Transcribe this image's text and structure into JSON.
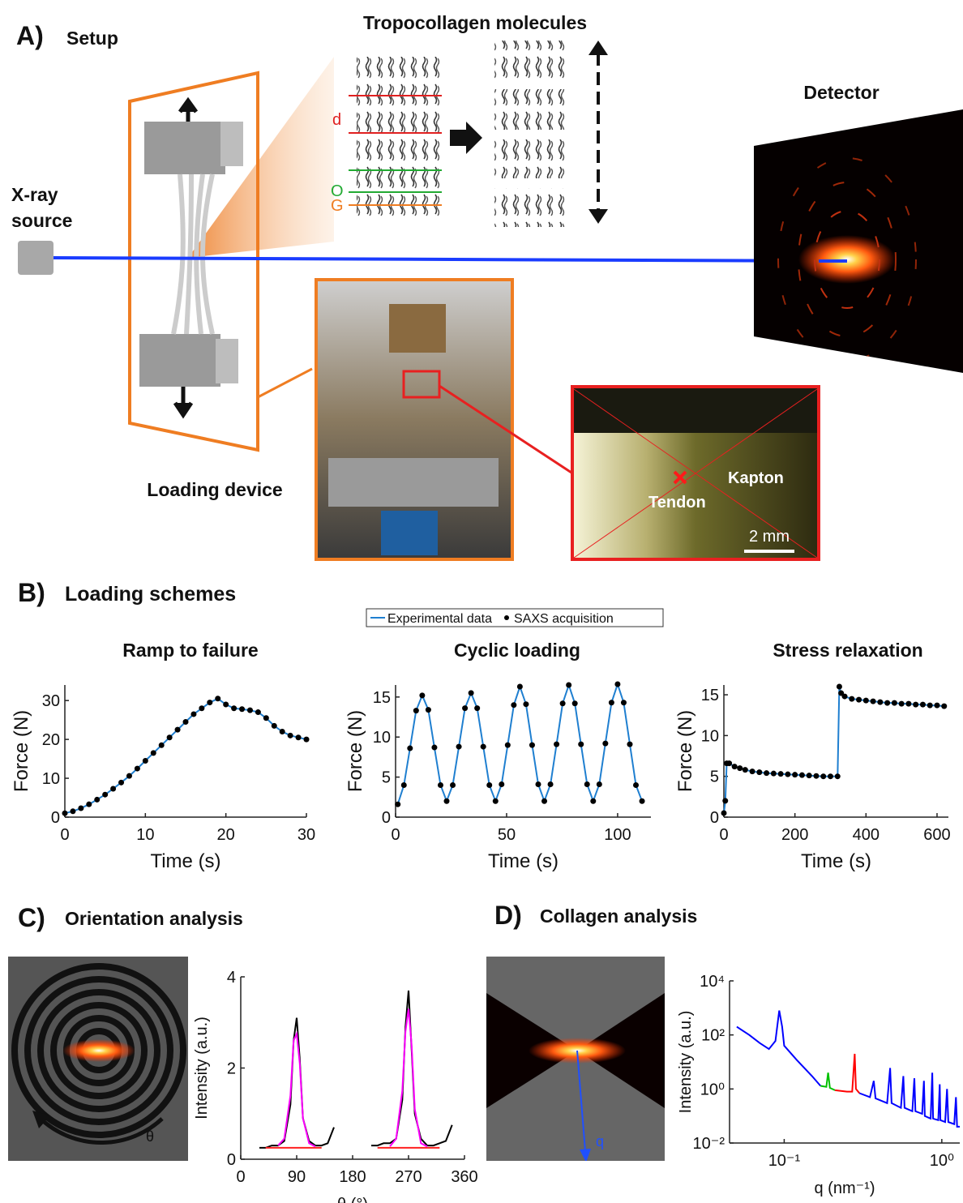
{
  "panel_a": {
    "label": "A)",
    "title": "Setup",
    "molecules_title": "Tropocollagen molecules",
    "detector": "Detector",
    "source": [
      "X-ray",
      "source"
    ],
    "period_d": "d",
    "overlap": "O",
    "gap": "G",
    "device": "Loading device",
    "kapton": "Kapton",
    "tendon": "Tendon",
    "scale_bar": "2 mm"
  },
  "panel_b": {
    "label": "B)",
    "title": "Loading schemes",
    "legend": [
      "Experimental data",
      "SAXS acquisition"
    ]
  },
  "panel_c": {
    "label": "C)",
    "title": "Orientation analysis",
    "angle": "θ"
  },
  "panel_d": {
    "label": "D)",
    "title": "Collagen analysis",
    "q_arrow": "q"
  },
  "chart_data": [
    {
      "type": "line",
      "title": "Ramp to failure",
      "x_label": "Time (s)",
      "y_label": "Force (N)",
      "markers": true,
      "marker_color": "#000000",
      "x": [
        0,
        1,
        2,
        3,
        4,
        5,
        6,
        7,
        8,
        9,
        10,
        11,
        12,
        13,
        14,
        15,
        16,
        17,
        18,
        19,
        20,
        21,
        22,
        23,
        24,
        25,
        26,
        27,
        28,
        29,
        30
      ],
      "series": [
        {
          "name": "Experimental data",
          "color": "#1f7fd0",
          "values": [
            1,
            1.5,
            2.3,
            3.3,
            4.5,
            5.8,
            7.3,
            8.9,
            10.6,
            12.5,
            14.5,
            16.5,
            18.5,
            20.5,
            22.5,
            24.5,
            26.5,
            28,
            29.5,
            30.5,
            29,
            28,
            27.8,
            27.5,
            27,
            25.5,
            23.5,
            22,
            21,
            20.5,
            20
          ]
        }
      ],
      "xlim": [
        0,
        30
      ],
      "xticks": [
        0,
        10,
        20,
        30
      ],
      "ylim": [
        0,
        34
      ],
      "yticks": [
        0,
        10,
        20,
        30
      ]
    },
    {
      "type": "line",
      "title": "Cyclic loading",
      "x_label": "Time (s)",
      "y_label": "Force (N)",
      "markers": true,
      "marker_color": "#000000",
      "x": [
        1,
        3.75,
        6.5,
        9.25,
        12,
        14.75,
        17.5,
        20.25,
        23,
        25.75,
        28.5,
        31.25,
        34,
        36.75,
        39.5,
        42.25,
        45,
        47.75,
        50.5,
        53.25,
        56,
        58.75,
        61.5,
        64.25,
        67,
        69.75,
        72.5,
        75.25,
        78,
        80.75,
        83.5,
        86.25,
        89,
        91.75,
        94.5,
        97.25,
        100,
        102.75,
        105.5,
        108.25,
        111
      ],
      "series": [
        {
          "name": "Experimental data",
          "color": "#1f7fd0",
          "values": [
            1.6,
            4,
            8.6,
            13.3,
            15.2,
            13.4,
            8.7,
            4,
            2,
            4,
            8.8,
            13.6,
            15.5,
            13.6,
            8.8,
            4,
            2,
            4.1,
            9,
            14,
            16.3,
            14.1,
            9,
            4.1,
            2,
            4.1,
            9.1,
            14.2,
            16.5,
            14.2,
            9.1,
            4.1,
            2,
            4.1,
            9.2,
            14.3,
            16.6,
            14.3,
            9.1,
            4,
            2
          ]
        }
      ],
      "xlim": [
        0,
        115
      ],
      "xticks": [
        0,
        50,
        100
      ],
      "ylim": [
        0,
        16.5
      ],
      "yticks": [
        0,
        5,
        10,
        15
      ]
    },
    {
      "type": "line",
      "title": "Stress relaxation",
      "x_label": "Time (s)",
      "y_label": "Force (N)",
      "markers": true,
      "marker_color": "#000000",
      "x": [
        0,
        4,
        8,
        15,
        30,
        45,
        60,
        80,
        100,
        120,
        140,
        160,
        180,
        200,
        220,
        240,
        260,
        280,
        300,
        320,
        325,
        330,
        340,
        360,
        380,
        400,
        420,
        440,
        460,
        480,
        500,
        520,
        540,
        560,
        580,
        600,
        620
      ],
      "series": [
        {
          "name": "Experimental data",
          "color": "#1f7fd0",
          "values": [
            0.5,
            2,
            6.6,
            6.6,
            6.2,
            6.0,
            5.8,
            5.6,
            5.5,
            5.4,
            5.35,
            5.3,
            5.25,
            5.2,
            5.15,
            5.1,
            5.05,
            5.0,
            5.0,
            5.0,
            16,
            15.2,
            14.8,
            14.5,
            14.4,
            14.3,
            14.2,
            14.1,
            14.0,
            14.0,
            13.9,
            13.9,
            13.8,
            13.8,
            13.7,
            13.7,
            13.6
          ]
        }
      ],
      "xlim": [
        0,
        632
      ],
      "xticks": [
        0,
        200,
        400,
        600
      ],
      "ylim": [
        0,
        16.2
      ],
      "yticks": [
        0,
        5,
        10,
        15
      ]
    },
    {
      "type": "line",
      "x_label": "θ (°)",
      "y_label": "Intensity (a.u.)",
      "markers": false,
      "x": [
        30,
        40,
        50,
        60,
        70,
        80,
        85,
        90,
        95,
        100,
        110,
        120,
        130,
        140,
        150,
        180,
        210,
        220,
        230,
        240,
        250,
        260,
        265,
        270,
        275,
        280,
        290,
        300,
        310,
        320,
        330,
        340
      ],
      "series": [
        {
          "color": "#000000",
          "values": [
            0.25,
            0.25,
            0.3,
            0.3,
            0.4,
            1.2,
            2.6,
            3.1,
            2.2,
            0.9,
            0.4,
            0.3,
            0.3,
            0.35,
            0.7,
            null,
            0.3,
            0.3,
            0.35,
            0.35,
            0.45,
            1.3,
            2.9,
            3.7,
            2.4,
            1.0,
            0.45,
            0.3,
            0.3,
            0.35,
            0.4,
            0.75
          ]
        },
        {
          "color": "#ff2020",
          "values": [
            null,
            0.25,
            0.25,
            0.25,
            0.25,
            0.25,
            0.25,
            0.25,
            0.25,
            0.25,
            0.25,
            0.25,
            0.25,
            null,
            null,
            null,
            null,
            0.25,
            0.25,
            0.25,
            0.25,
            0.25,
            0.25,
            0.25,
            0.25,
            0.25,
            0.25,
            0.25,
            0.25,
            0.25,
            null,
            null
          ]
        },
        {
          "color": "#ff00ff",
          "values": [
            null,
            null,
            null,
            0.3,
            0.45,
            1.4,
            2.6,
            2.75,
            2.1,
            0.9,
            0.35,
            0.28,
            null,
            null,
            null,
            null,
            null,
            null,
            null,
            0.28,
            0.45,
            1.5,
            2.8,
            3.3,
            2.5,
            1.1,
            0.35,
            0.28,
            null,
            null,
            null,
            null
          ]
        }
      ],
      "xlim": [
        0,
        360
      ],
      "xticks": [
        0,
        90,
        180,
        270,
        360
      ],
      "ylim": [
        0,
        4
      ],
      "yticks": [
        0,
        2,
        4
      ]
    },
    {
      "type": "line",
      "x_label": "q (nm⁻¹)",
      "y_label": "Intensity (a.u.)",
      "markers": false,
      "xscale": "log",
      "yscale": "log",
      "series": [
        {
          "color": "#0000ff",
          "x": [
            0.05,
            0.06,
            0.07,
            0.08,
            0.088,
            0.093,
            0.097,
            0.1,
            0.12,
            0.15,
            0.17,
            0.24,
            0.3,
            0.35,
            0.37,
            0.38,
            0.45,
            0.47,
            0.48,
            0.55,
            0.57,
            0.58,
            0.65,
            0.67,
            0.68,
            0.75,
            0.77,
            0.78,
            0.85,
            0.87,
            0.88,
            0.95,
            0.97,
            0.98,
            1.05,
            1.08,
            1.1,
            1.2,
            1.23,
            1.25,
            1.3
          ],
          "values": [
            200,
            100,
            50,
            30,
            60,
            800,
            200,
            40,
            12,
            3,
            1.3,
            null,
            0.7,
            0.5,
            2,
            0.45,
            0.3,
            6,
            0.3,
            0.2,
            3,
            0.2,
            0.15,
            2.5,
            0.15,
            0.12,
            2,
            0.1,
            0.08,
            4,
            0.08,
            0.07,
            1.5,
            0.07,
            0.06,
            1,
            0.06,
            0.05,
            0.5,
            0.04,
            0.04
          ]
        },
        {
          "color": "#00c000",
          "x": [
            0.17,
            0.185,
            0.19,
            0.195,
            0.21
          ],
          "values": [
            1.3,
            1.2,
            4,
            1.1,
            0.9
          ]
        },
        {
          "color": "#ff0000",
          "x": [
            0.21,
            0.25,
            0.27,
            0.28,
            0.285,
            0.3
          ],
          "values": [
            0.9,
            0.8,
            0.8,
            20,
            1,
            0.7
          ]
        }
      ],
      "xlim": [
        0.045,
        1.3
      ],
      "xticks": [
        {
          "value": 0.1,
          "label": "10⁻¹"
        },
        {
          "value": 1,
          "label": "10⁰"
        }
      ],
      "ylim": [
        0.01,
        10000
      ],
      "yticks": [
        {
          "value": 0.01,
          "label": "10⁻²"
        },
        {
          "value": 1,
          "label": "10⁰"
        },
        {
          "value": 100,
          "label": "10²"
        },
        {
          "value": 10000,
          "label": "10⁴"
        }
      ]
    }
  ]
}
